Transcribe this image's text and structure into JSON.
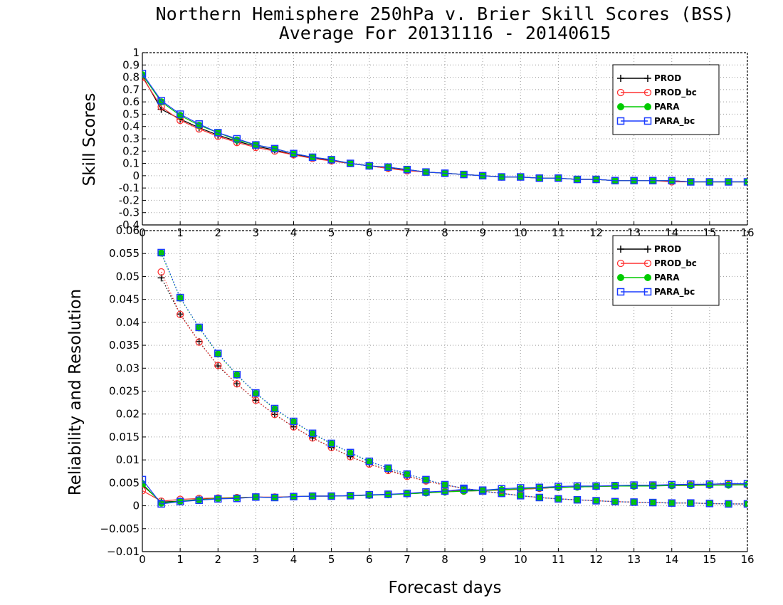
{
  "chart_data": [
    {
      "type": "line",
      "title": "Northern Hemisphere 250hPa v. Brier Skill Scores (BSS)",
      "subtitle": "Average For 20131116 - 20140615",
      "xlabel": "",
      "ylabel": "Skill Scores",
      "xlim": [
        0,
        16
      ],
      "ylim": [
        -0.4,
        1
      ],
      "xticks": [
        "0",
        "1",
        "2",
        "3",
        "4",
        "5",
        "6",
        "7",
        "8",
        "9",
        "10",
        "11",
        "12",
        "13",
        "14",
        "15",
        "16"
      ],
      "yticks": [
        "-0.4",
        "-0.3",
        "-0.2",
        "-0.1",
        "0",
        "0.1",
        "0.2",
        "0.3",
        "0.4",
        "0.5",
        "0.6",
        "0.7",
        "0.8",
        "0.9",
        "1"
      ],
      "grid": true,
      "legend": "top-right",
      "x": [
        0,
        0.5,
        1,
        1.5,
        2,
        2.5,
        3,
        3.5,
        4,
        4.5,
        5,
        5.5,
        6,
        6.5,
        7,
        7.5,
        8,
        8.5,
        9,
        9.5,
        10,
        10.5,
        11,
        11.5,
        12,
        12.5,
        13,
        13.5,
        14,
        14.5,
        15,
        15.5,
        16
      ],
      "series": [
        {
          "name": "PROD",
          "color": "#000000",
          "marker": "plus",
          "values": [
            0.81,
            0.54,
            0.46,
            0.39,
            0.33,
            0.28,
            0.24,
            0.21,
            0.17,
            0.15,
            0.12,
            0.1,
            0.08,
            0.06,
            0.05,
            0.03,
            0.02,
            0.01,
            0.0,
            -0.01,
            -0.01,
            -0.02,
            -0.02,
            -0.03,
            -0.03,
            -0.04,
            -0.04,
            -0.04,
            -0.04,
            -0.05,
            -0.05,
            -0.05,
            -0.05
          ]
        },
        {
          "name": "PROD_bc",
          "color": "#ff3333",
          "marker": "circle",
          "values": [
            0.8,
            0.56,
            0.45,
            0.38,
            0.32,
            0.27,
            0.23,
            0.2,
            0.17,
            0.14,
            0.12,
            0.1,
            0.08,
            0.06,
            0.04,
            0.03,
            0.02,
            0.01,
            0.0,
            -0.01,
            -0.01,
            -0.02,
            -0.02,
            -0.03,
            -0.03,
            -0.04,
            -0.04,
            -0.04,
            -0.05,
            -0.05,
            -0.05,
            -0.05,
            -0.05
          ]
        },
        {
          "name": "PARA",
          "color": "#00cc00",
          "marker": "dot",
          "values": [
            0.82,
            0.6,
            0.49,
            0.41,
            0.35,
            0.29,
            0.25,
            0.22,
            0.18,
            0.15,
            0.13,
            0.1,
            0.08,
            0.07,
            0.05,
            0.03,
            0.02,
            0.01,
            0.0,
            -0.01,
            -0.01,
            -0.02,
            -0.02,
            -0.03,
            -0.03,
            -0.04,
            -0.04,
            -0.04,
            -0.04,
            -0.05,
            -0.05,
            -0.05,
            -0.05
          ]
        },
        {
          "name": "PARA_bc",
          "color": "#1a3cff",
          "marker": "square",
          "values": [
            0.83,
            0.61,
            0.5,
            0.42,
            0.35,
            0.3,
            0.25,
            0.22,
            0.18,
            0.15,
            0.13,
            0.1,
            0.08,
            0.07,
            0.05,
            0.03,
            0.02,
            0.01,
            0.0,
            -0.01,
            -0.01,
            -0.02,
            -0.02,
            -0.03,
            -0.03,
            -0.04,
            -0.04,
            -0.04,
            -0.04,
            -0.05,
            -0.05,
            -0.05,
            -0.05
          ]
        }
      ]
    },
    {
      "type": "line",
      "title": "",
      "xlabel": "Forecast days",
      "ylabel": "Reliability and Resolution",
      "xlim": [
        0,
        16
      ],
      "ylim": [
        -0.01,
        0.06
      ],
      "xticks": [
        "0",
        "1",
        "2",
        "3",
        "4",
        "5",
        "6",
        "7",
        "8",
        "9",
        "10",
        "11",
        "12",
        "13",
        "14",
        "15",
        "16"
      ],
      "yticks": [
        "−0.01",
        "−0.005",
        "0",
        "0.005",
        "0.01",
        "0.015",
        "0.02",
        "0.025",
        "0.03",
        "0.035",
        "0.04",
        "0.045",
        "0.05",
        "0.055",
        "0.06"
      ],
      "grid": true,
      "legend": "top-right",
      "x": [
        0,
        0.5,
        1,
        1.5,
        2,
        2.5,
        3,
        3.5,
        4,
        4.5,
        5,
        5.5,
        6,
        6.5,
        7,
        7.5,
        8,
        8.5,
        9,
        9.5,
        10,
        10.5,
        11,
        11.5,
        12,
        12.5,
        13,
        13.5,
        14,
        14.5,
        15,
        15.5,
        16
      ],
      "series": [
        {
          "name": "PROD",
          "color": "#000000",
          "marker": "plus",
          "group": "resolution",
          "values": [
            null,
            0.0497,
            0.0418,
            0.0358,
            0.0305,
            0.0266,
            0.023,
            0.0199,
            0.0172,
            0.0148,
            0.0127,
            0.0107,
            0.0091,
            0.0078,
            0.0065,
            0.0054,
            0.0045,
            0.0038,
            0.0032,
            0.0027,
            0.0022,
            0.0018,
            0.0015,
            0.0013,
            0.0011,
            0.0009,
            0.0008,
            0.0007,
            0.0006,
            0.0006,
            0.0005,
            0.0004,
            0.0004
          ]
        },
        {
          "name": "PROD_bc",
          "color": "#ff3333",
          "marker": "circle",
          "group": "resolution",
          "values": [
            null,
            0.051,
            0.0417,
            0.0357,
            0.0306,
            0.0266,
            0.023,
            0.0199,
            0.0172,
            0.0148,
            0.0127,
            0.0107,
            0.0091,
            0.0077,
            0.0064,
            0.0054,
            0.0045,
            0.0038,
            0.0032,
            0.0027,
            0.0022,
            0.0018,
            0.0015,
            0.0013,
            0.0011,
            0.0009,
            0.0008,
            0.0007,
            0.0006,
            0.0006,
            0.0005,
            0.0004,
            0.0004
          ]
        },
        {
          "name": "PARA",
          "color": "#00cc00",
          "marker": "dot",
          "group": "resolution",
          "values": [
            null,
            0.0551,
            0.0453,
            0.0388,
            0.0331,
            0.0285,
            0.0245,
            0.0211,
            0.0183,
            0.0157,
            0.0135,
            0.0115,
            0.0096,
            0.0082,
            0.0069,
            0.0057,
            0.0046,
            0.0038,
            0.0032,
            0.0027,
            0.0022,
            0.0018,
            0.0015,
            0.0013,
            0.0011,
            0.0009,
            0.0008,
            0.0007,
            0.0006,
            0.0006,
            0.0005,
            0.0004,
            0.0004
          ]
        },
        {
          "name": "PARA_bc",
          "color": "#1a3cff",
          "marker": "square",
          "group": "resolution",
          "values": [
            null,
            0.0552,
            0.0454,
            0.0389,
            0.0332,
            0.0286,
            0.0246,
            0.0212,
            0.0184,
            0.0158,
            0.0136,
            0.0116,
            0.0097,
            0.0082,
            0.0069,
            0.0057,
            0.0046,
            0.0038,
            0.0032,
            0.0027,
            0.0022,
            0.0018,
            0.0015,
            0.0013,
            0.0011,
            0.0009,
            0.0008,
            0.0007,
            0.0006,
            0.0006,
            0.0005,
            0.0004,
            0.0004
          ]
        },
        {
          "name": "PROD",
          "color": "#000000",
          "marker": "plus",
          "group": "reliability",
          "values": [
            0.0045,
            0.0008,
            0.001,
            0.0014,
            0.0016,
            0.0017,
            0.0019,
            0.0018,
            0.002,
            0.0021,
            0.0021,
            0.0022,
            0.0023,
            0.0025,
            0.0026,
            0.0028,
            0.0031,
            0.0033,
            0.0034,
            0.0035,
            0.0036,
            0.0038,
            0.004,
            0.0041,
            0.0042,
            0.0043,
            0.0044,
            0.0044,
            0.0045,
            0.0046,
            0.0047,
            0.0048,
            0.0048
          ]
        },
        {
          "name": "PROD_bc",
          "color": "#ff3333",
          "marker": "circle",
          "group": "reliability",
          "values": [
            0.0033,
            0.001,
            0.0014,
            0.0016,
            0.0017,
            0.0018,
            0.0019,
            0.0019,
            0.002,
            0.0021,
            0.0021,
            0.0022,
            0.0023,
            0.0025,
            0.0026,
            0.0029,
            0.0031,
            0.0032,
            0.0033,
            0.0034,
            0.0036,
            0.0038,
            0.004,
            0.0041,
            0.0042,
            0.0043,
            0.0043,
            0.0044,
            0.0044,
            0.0045,
            0.0045,
            0.0046,
            0.0045
          ]
        },
        {
          "name": "PARA",
          "color": "#00cc00",
          "marker": "dot",
          "group": "reliability",
          "values": [
            0.0048,
            0.0006,
            0.001,
            0.0013,
            0.0016,
            0.0017,
            0.0019,
            0.0018,
            0.002,
            0.0021,
            0.0021,
            0.0022,
            0.0023,
            0.0024,
            0.0026,
            0.0028,
            0.003,
            0.0032,
            0.0033,
            0.0035,
            0.0037,
            0.0039,
            0.004,
            0.0041,
            0.0042,
            0.0043,
            0.0043,
            0.0043,
            0.0044,
            0.0044,
            0.0045,
            0.0045,
            0.0046
          ]
        },
        {
          "name": "PARA_bc",
          "color": "#1a3cff",
          "marker": "square",
          "group": "reliability",
          "values": [
            0.0057,
            0.0004,
            0.0009,
            0.0012,
            0.0015,
            0.0016,
            0.0019,
            0.0018,
            0.002,
            0.0021,
            0.0021,
            0.0022,
            0.0024,
            0.0025,
            0.0027,
            0.003,
            0.0032,
            0.0036,
            0.0034,
            0.0037,
            0.0039,
            0.004,
            0.0042,
            0.0043,
            0.0043,
            0.0044,
            0.0045,
            0.0045,
            0.0046,
            0.0047,
            0.0047,
            0.0048,
            0.0048
          ]
        }
      ]
    }
  ]
}
